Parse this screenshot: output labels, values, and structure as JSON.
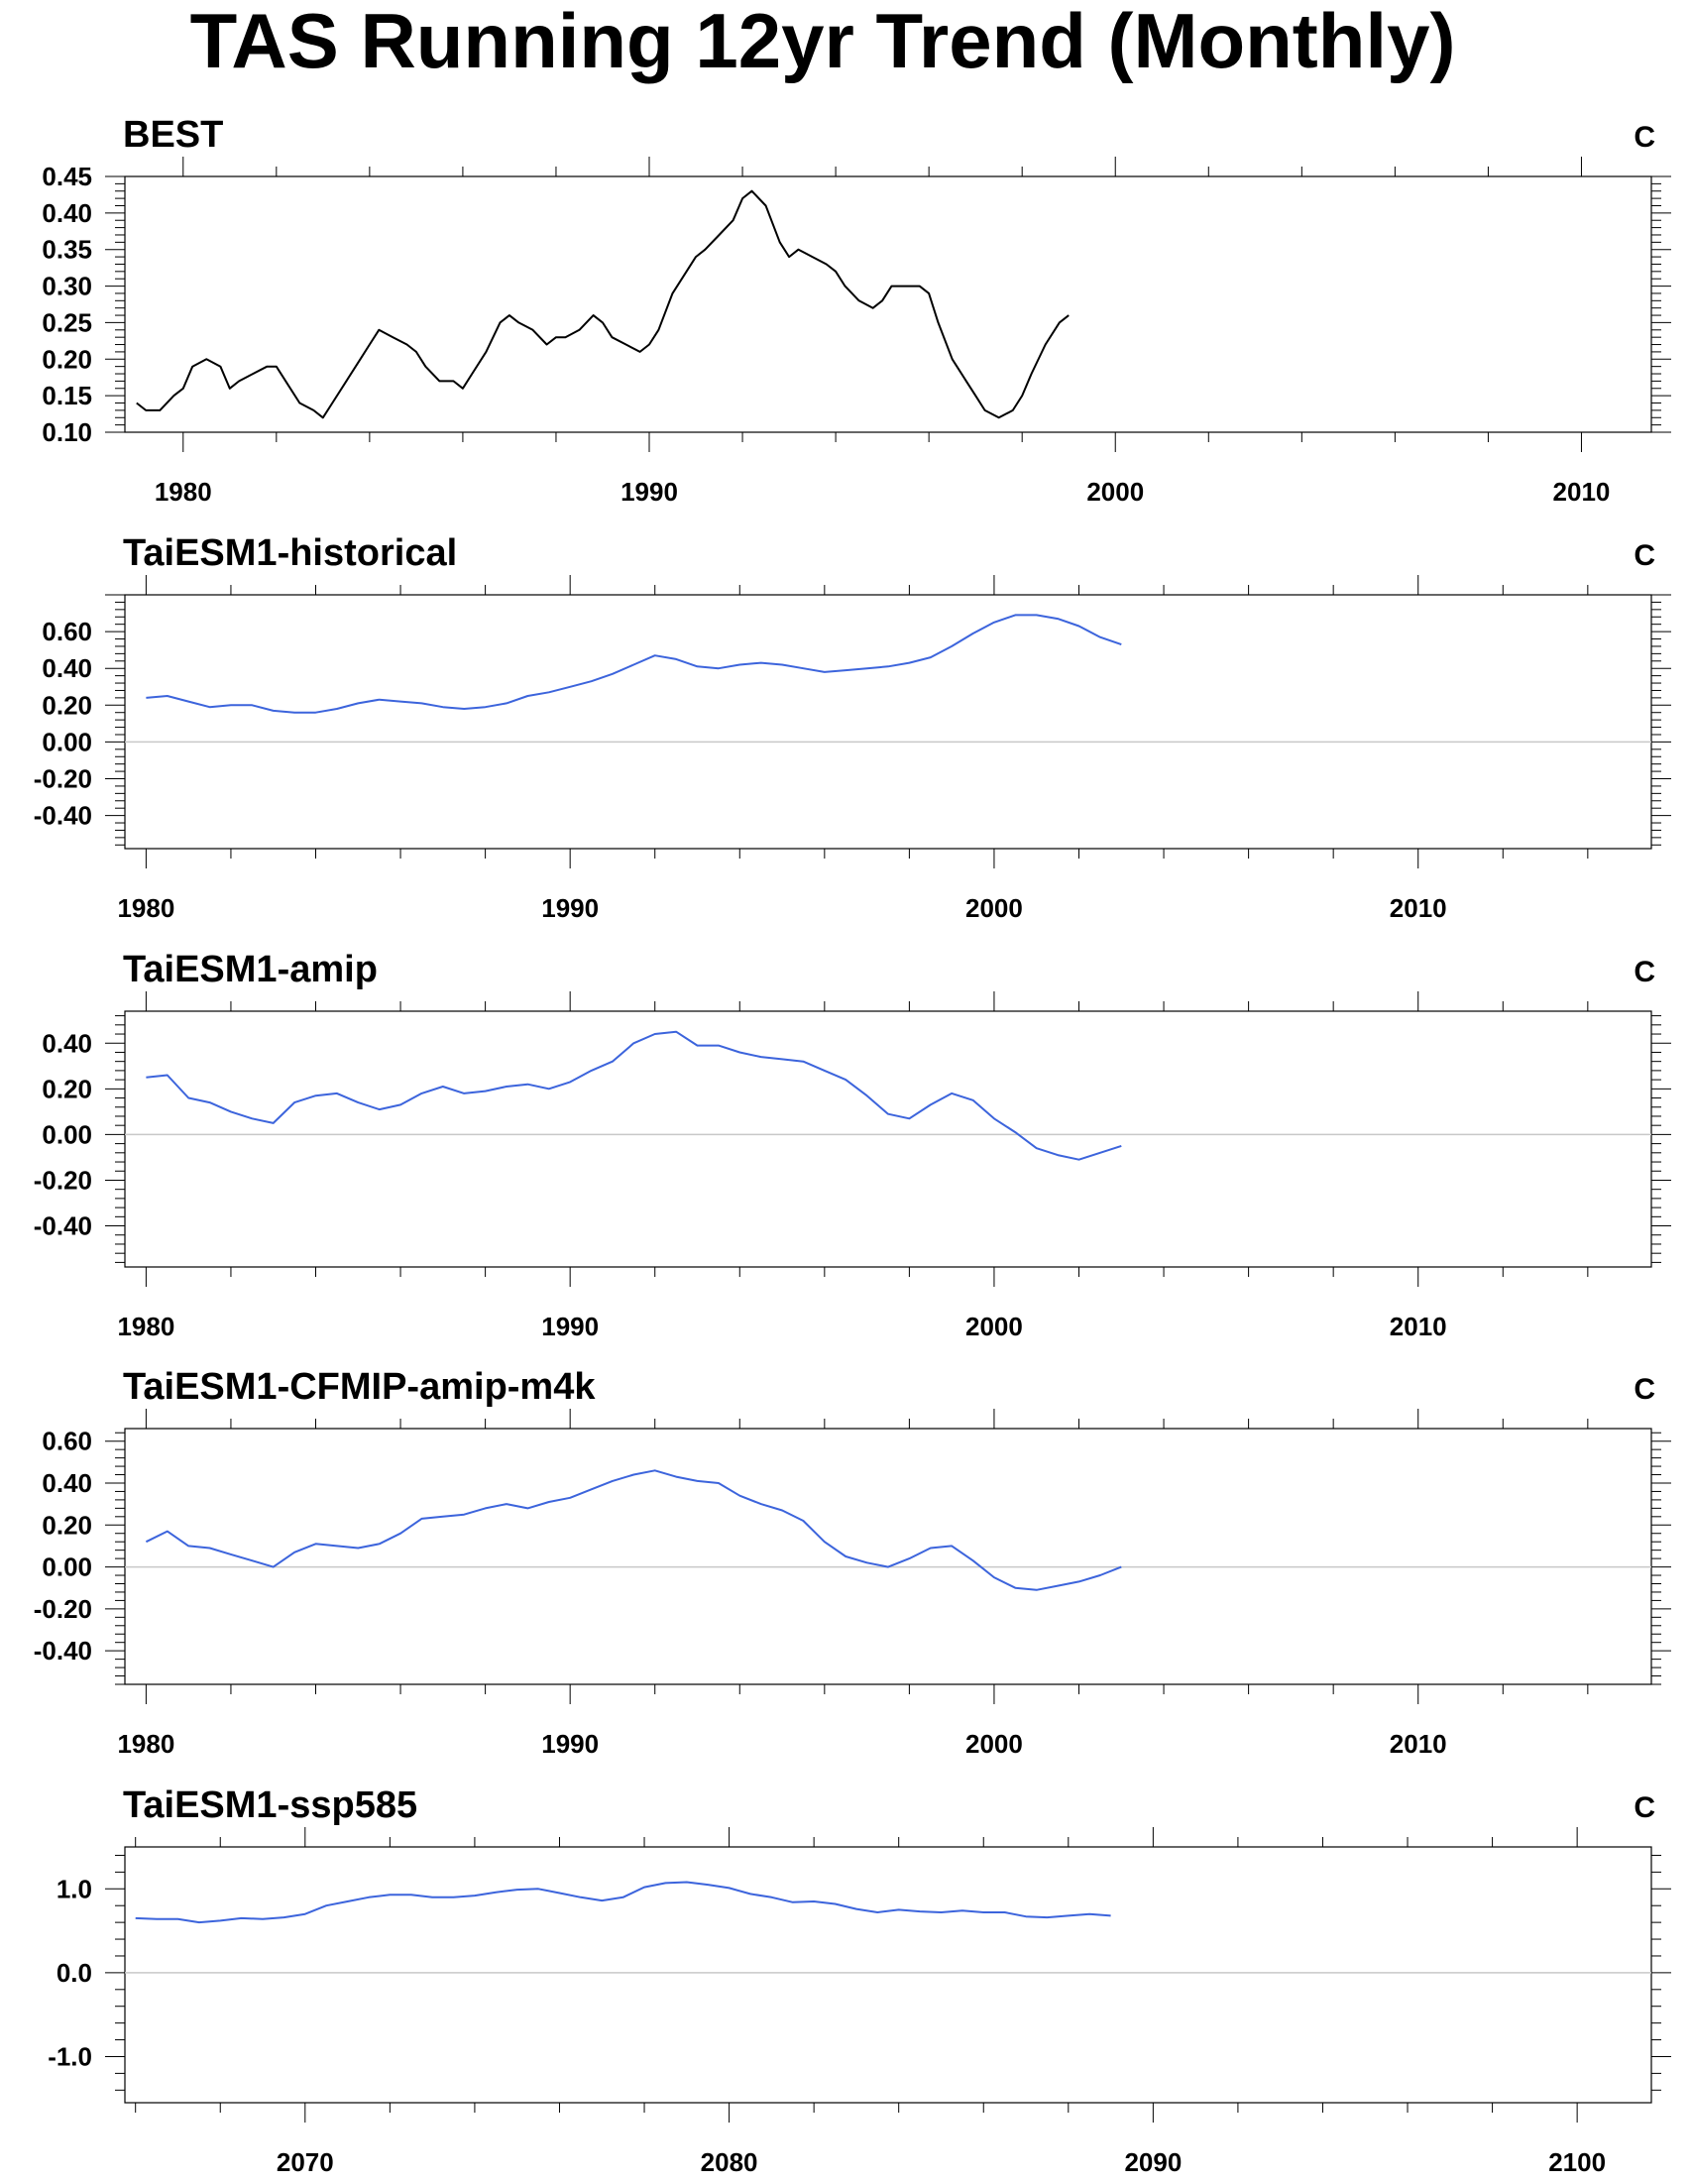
{
  "title": "TAS Running 12yr Trend (Monthly)",
  "chart_data": [
    {
      "type": "line",
      "title": "BEST",
      "unit": "C",
      "color": "#000000",
      "xlim": [
        1978.75,
        2011.5
      ],
      "ylim": [
        0.1,
        0.45
      ],
      "xticks": [
        1980,
        1990,
        2000,
        2010
      ],
      "yticks": [
        0.1,
        0.15,
        0.2,
        0.25,
        0.3,
        0.35,
        0.4,
        0.45
      ],
      "ytick_labels": [
        "0.10",
        "0.15",
        "0.20",
        "0.25",
        "0.30",
        "0.35",
        "0.40",
        "0.45"
      ],
      "zero_line": false,
      "x": [
        1979.0,
        1979.2,
        1979.5,
        1979.8,
        1980.0,
        1980.2,
        1980.5,
        1980.8,
        1981.0,
        1981.2,
        1981.5,
        1981.8,
        1982.0,
        1982.2,
        1982.5,
        1982.8,
        1983.0,
        1983.2,
        1983.5,
        1983.8,
        1984.0,
        1984.2,
        1984.5,
        1984.8,
        1985.0,
        1985.2,
        1985.5,
        1985.8,
        1986.0,
        1986.2,
        1986.5,
        1986.8,
        1987.0,
        1987.2,
        1987.5,
        1987.8,
        1988.0,
        1988.2,
        1988.5,
        1988.8,
        1989.0,
        1989.2,
        1989.5,
        1989.8,
        1990.0,
        1990.2,
        1990.5,
        1990.8,
        1991.0,
        1991.2,
        1991.5,
        1991.8,
        1992.0,
        1992.2,
        1992.5,
        1992.8,
        1993.0,
        1993.2,
        1993.5,
        1993.8,
        1994.0,
        1994.2,
        1994.5,
        1994.8,
        1995.0,
        1995.2,
        1995.5,
        1995.8,
        1996.0,
        1996.2,
        1996.5,
        1996.8,
        1997.0,
        1997.2,
        1997.5,
        1997.8,
        1998.0,
        1998.2,
        1998.5,
        1998.8,
        1999.0
      ],
      "y": [
        0.14,
        0.13,
        0.13,
        0.15,
        0.16,
        0.19,
        0.2,
        0.19,
        0.16,
        0.17,
        0.18,
        0.19,
        0.19,
        0.17,
        0.14,
        0.13,
        0.12,
        0.14,
        0.17,
        0.2,
        0.22,
        0.24,
        0.23,
        0.22,
        0.21,
        0.19,
        0.17,
        0.17,
        0.16,
        0.18,
        0.21,
        0.25,
        0.26,
        0.25,
        0.24,
        0.22,
        0.23,
        0.23,
        0.24,
        0.26,
        0.25,
        0.23,
        0.22,
        0.21,
        0.22,
        0.24,
        0.29,
        0.32,
        0.34,
        0.35,
        0.37,
        0.39,
        0.42,
        0.43,
        0.41,
        0.36,
        0.34,
        0.35,
        0.34,
        0.33,
        0.32,
        0.3,
        0.28,
        0.27,
        0.28,
        0.3,
        0.3,
        0.3,
        0.29,
        0.25,
        0.2,
        0.17,
        0.15,
        0.13,
        0.12,
        0.13,
        0.15,
        0.18,
        0.22,
        0.25,
        0.26
      ]
    },
    {
      "type": "line",
      "title": "TaiESM1-historical",
      "unit": "C",
      "color": "#3c64dc",
      "xlim": [
        1979.5,
        2015.5
      ],
      "ylim": [
        -0.58,
        0.8
      ],
      "xticks": [
        1980,
        1990,
        2000,
        2010
      ],
      "yticks": [
        -0.4,
        -0.2,
        0.0,
        0.2,
        0.4,
        0.6
      ],
      "ytick_labels": [
        "-0.40",
        "-0.20",
        "0.00",
        "0.20",
        "0.40",
        "0.60"
      ],
      "zero_line": true,
      "x": [
        1980.0,
        1980.5,
        1981.0,
        1981.5,
        1982.0,
        1982.5,
        1983.0,
        1983.5,
        1984.0,
        1984.5,
        1985.0,
        1985.5,
        1986.0,
        1986.5,
        1987.0,
        1987.5,
        1988.0,
        1988.5,
        1989.0,
        1989.5,
        1990.0,
        1990.5,
        1991.0,
        1991.5,
        1992.0,
        1992.5,
        1993.0,
        1993.5,
        1994.0,
        1994.5,
        1995.0,
        1995.5,
        1996.0,
        1996.5,
        1997.0,
        1997.5,
        1998.0,
        1998.5,
        1999.0,
        1999.5,
        2000.0,
        2000.5,
        2001.0,
        2001.5,
        2002.0,
        2002.5,
        2003.0
      ],
      "y": [
        0.24,
        0.25,
        0.22,
        0.19,
        0.2,
        0.2,
        0.17,
        0.16,
        0.16,
        0.18,
        0.21,
        0.23,
        0.22,
        0.21,
        0.19,
        0.18,
        0.19,
        0.21,
        0.25,
        0.27,
        0.3,
        0.33,
        0.37,
        0.42,
        0.47,
        0.45,
        0.41,
        0.4,
        0.42,
        0.43,
        0.42,
        0.4,
        0.38,
        0.39,
        0.4,
        0.41,
        0.43,
        0.46,
        0.52,
        0.59,
        0.65,
        0.69,
        0.69,
        0.67,
        0.63,
        0.57,
        0.53
      ]
    },
    {
      "type": "line",
      "title": "TaiESM1-amip",
      "unit": "C",
      "color": "#3c64dc",
      "xlim": [
        1979.5,
        2015.5
      ],
      "ylim": [
        -0.58,
        0.54
      ],
      "xticks": [
        1980,
        1990,
        2000,
        2010
      ],
      "yticks": [
        -0.4,
        -0.2,
        0.0,
        0.2,
        0.4
      ],
      "ytick_labels": [
        "-0.40",
        "-0.20",
        "0.00",
        "0.20",
        "0.40"
      ],
      "zero_line": true,
      "x": [
        1980.0,
        1980.5,
        1981.0,
        1981.5,
        1982.0,
        1982.5,
        1983.0,
        1983.5,
        1984.0,
        1984.5,
        1985.0,
        1985.5,
        1986.0,
        1986.5,
        1987.0,
        1987.5,
        1988.0,
        1988.5,
        1989.0,
        1989.5,
        1990.0,
        1990.5,
        1991.0,
        1991.5,
        1992.0,
        1992.5,
        1993.0,
        1993.5,
        1994.0,
        1994.5,
        1995.0,
        1995.5,
        1996.0,
        1996.5,
        1997.0,
        1997.5,
        1998.0,
        1998.5,
        1999.0,
        1999.5,
        2000.0,
        2000.5,
        2001.0,
        2001.5,
        2002.0,
        2002.5,
        2003.0
      ],
      "y": [
        0.25,
        0.26,
        0.16,
        0.14,
        0.1,
        0.07,
        0.05,
        0.14,
        0.17,
        0.18,
        0.14,
        0.11,
        0.13,
        0.18,
        0.21,
        0.18,
        0.19,
        0.21,
        0.22,
        0.2,
        0.23,
        0.28,
        0.32,
        0.4,
        0.44,
        0.45,
        0.39,
        0.39,
        0.36,
        0.34,
        0.33,
        0.32,
        0.28,
        0.24,
        0.17,
        0.09,
        0.07,
        0.13,
        0.18,
        0.15,
        0.07,
        0.01,
        -0.06,
        -0.09,
        -0.11,
        -0.08,
        -0.05
      ]
    },
    {
      "type": "line",
      "title": "TaiESM1-CFMIP-amip-m4k",
      "unit": "C",
      "color": "#3c64dc",
      "xlim": [
        1979.5,
        2015.5
      ],
      "ylim": [
        -0.56,
        0.66
      ],
      "xticks": [
        1980,
        1990,
        2000,
        2010
      ],
      "yticks": [
        -0.4,
        -0.2,
        0.0,
        0.2,
        0.4,
        0.6
      ],
      "ytick_labels": [
        "-0.40",
        "-0.20",
        "0.00",
        "0.20",
        "0.40",
        "0.60"
      ],
      "zero_line": true,
      "x": [
        1980.0,
        1980.5,
        1981.0,
        1981.5,
        1982.0,
        1982.5,
        1983.0,
        1983.5,
        1984.0,
        1984.5,
        1985.0,
        1985.5,
        1986.0,
        1986.5,
        1987.0,
        1987.5,
        1988.0,
        1988.5,
        1989.0,
        1989.5,
        1990.0,
        1990.5,
        1991.0,
        1991.5,
        1992.0,
        1992.5,
        1993.0,
        1993.5,
        1994.0,
        1994.5,
        1995.0,
        1995.5,
        1996.0,
        1996.5,
        1997.0,
        1997.5,
        1998.0,
        1998.5,
        1999.0,
        1999.5,
        2000.0,
        2000.5,
        2001.0,
        2001.5,
        2002.0,
        2002.5,
        2003.0
      ],
      "y": [
        0.12,
        0.17,
        0.1,
        0.09,
        0.06,
        0.03,
        0.0,
        0.07,
        0.11,
        0.1,
        0.09,
        0.11,
        0.16,
        0.23,
        0.24,
        0.25,
        0.28,
        0.3,
        0.28,
        0.31,
        0.33,
        0.37,
        0.41,
        0.44,
        0.46,
        0.43,
        0.41,
        0.4,
        0.34,
        0.3,
        0.27,
        0.22,
        0.12,
        0.05,
        0.02,
        0.0,
        0.04,
        0.09,
        0.1,
        0.03,
        -0.05,
        -0.1,
        -0.11,
        -0.09,
        -0.07,
        -0.04,
        0.0
      ]
    },
    {
      "type": "line",
      "title": "TaiESM1-ssp585",
      "unit": "C",
      "color": "#3c64dc",
      "xlim": [
        2065.75,
        2101.75
      ],
      "ylim": [
        -1.55,
        1.5
      ],
      "xticks": [
        2070,
        2080,
        2090,
        2100
      ],
      "yticks": [
        -1.0,
        0.0,
        1.0
      ],
      "ytick_labels": [
        "-1.0",
        "0.0",
        "1.0"
      ],
      "zero_line": true,
      "x": [
        2066.0,
        2066.5,
        2067.0,
        2067.5,
        2068.0,
        2068.5,
        2069.0,
        2069.5,
        2070.0,
        2070.5,
        2071.0,
        2071.5,
        2072.0,
        2072.5,
        2073.0,
        2073.5,
        2074.0,
        2074.5,
        2075.0,
        2075.5,
        2076.0,
        2076.5,
        2077.0,
        2077.5,
        2078.0,
        2078.5,
        2079.0,
        2079.5,
        2080.0,
        2080.5,
        2081.0,
        2081.5,
        2082.0,
        2082.5,
        2083.0,
        2083.5,
        2084.0,
        2084.5,
        2085.0,
        2085.5,
        2086.0,
        2086.5,
        2087.0,
        2087.5,
        2088.0,
        2088.5,
        2089.0
      ],
      "y": [
        0.65,
        0.64,
        0.64,
        0.6,
        0.62,
        0.65,
        0.64,
        0.66,
        0.7,
        0.8,
        0.85,
        0.9,
        0.93,
        0.93,
        0.9,
        0.9,
        0.92,
        0.96,
        0.99,
        1.0,
        0.95,
        0.9,
        0.86,
        0.9,
        1.02,
        1.07,
        1.08,
        1.05,
        1.01,
        0.94,
        0.9,
        0.84,
        0.85,
        0.82,
        0.76,
        0.72,
        0.75,
        0.73,
        0.72,
        0.74,
        0.72,
        0.72,
        0.67,
        0.66,
        0.68,
        0.7,
        0.68
      ]
    }
  ]
}
